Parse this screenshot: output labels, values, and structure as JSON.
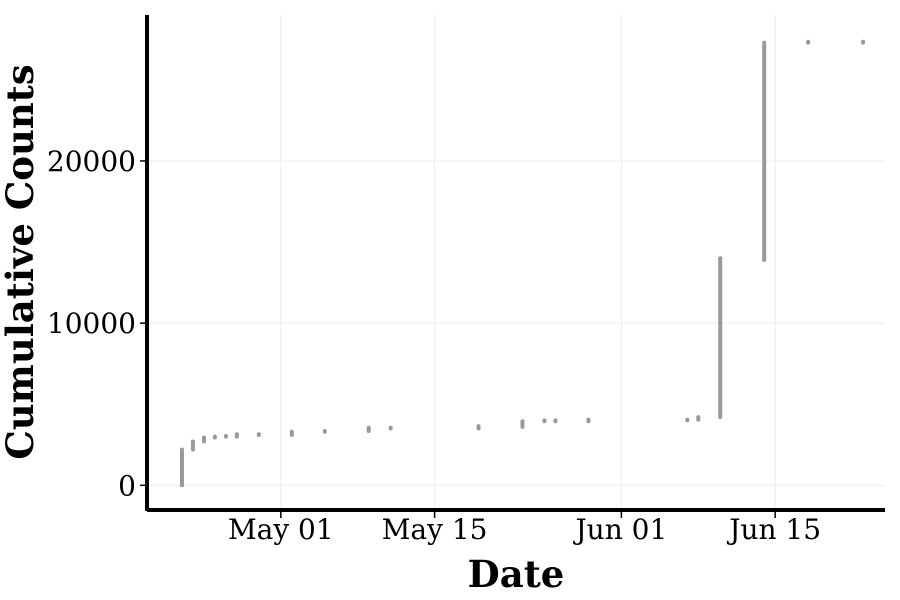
{
  "chart_data": {
    "type": "scatter",
    "title": "",
    "xlabel": "Date",
    "ylabel": "Cumulative Counts",
    "x_axis_type": "date",
    "xlim": [
      "2020-04-19",
      "2020-06-25"
    ],
    "ylim": [
      -1400,
      29000
    ],
    "x_ticks": [
      {
        "date": "2020-05-01",
        "label": "May 01"
      },
      {
        "date": "2020-05-15",
        "label": "May 15"
      },
      {
        "date": "2020-06-01",
        "label": "Jun 01"
      },
      {
        "date": "2020-06-15",
        "label": "Jun 15"
      }
    ],
    "y_ticks": [
      {
        "value": 0,
        "label": "0"
      },
      {
        "value": 10000,
        "label": "10000"
      },
      {
        "value": 20000,
        "label": "20000"
      }
    ],
    "grid": true,
    "legend": "none",
    "point_color": "#999999",
    "series": [
      {
        "points": [
          {
            "x": "2020-04-22",
            "y_min": 0,
            "y_max": 2200
          },
          {
            "x": "2020-04-23",
            "y_min": 2200,
            "y_max": 2700
          },
          {
            "x": "2020-04-24",
            "y_min": 2700,
            "y_max": 2950
          },
          {
            "x": "2020-04-25",
            "y_min": 2950,
            "y_max": 3000
          },
          {
            "x": "2020-04-26",
            "y_min": 3000,
            "y_max": 3050
          },
          {
            "x": "2020-04-27",
            "y_min": 3000,
            "y_max": 3150
          },
          {
            "x": "2020-04-29",
            "y_min": 3100,
            "y_max": 3150
          },
          {
            "x": "2020-05-02",
            "y_min": 3100,
            "y_max": 3300
          },
          {
            "x": "2020-05-05",
            "y_min": 3300,
            "y_max": 3350
          },
          {
            "x": "2020-05-09",
            "y_min": 3350,
            "y_max": 3550
          },
          {
            "x": "2020-05-11",
            "y_min": 3500,
            "y_max": 3550
          },
          {
            "x": "2020-05-19",
            "y_min": 3500,
            "y_max": 3650
          },
          {
            "x": "2020-05-23",
            "y_min": 3600,
            "y_max": 3950
          },
          {
            "x": "2020-05-25",
            "y_min": 3950,
            "y_max": 4000
          },
          {
            "x": "2020-05-26",
            "y_min": 3950,
            "y_max": 4000
          },
          {
            "x": "2020-05-29",
            "y_min": 3950,
            "y_max": 4050
          },
          {
            "x": "2020-06-07",
            "y_min": 4000,
            "y_max": 4050
          },
          {
            "x": "2020-06-08",
            "y_min": 4050,
            "y_max": 4200
          },
          {
            "x": "2020-06-10",
            "y_min": 4200,
            "y_max": 14000
          },
          {
            "x": "2020-06-14",
            "y_min": 13900,
            "y_max": 27300
          },
          {
            "x": "2020-06-18",
            "y_min": 27300,
            "y_max": 27350
          },
          {
            "x": "2020-06-23",
            "y_min": 27300,
            "y_max": 27350
          }
        ]
      }
    ]
  }
}
